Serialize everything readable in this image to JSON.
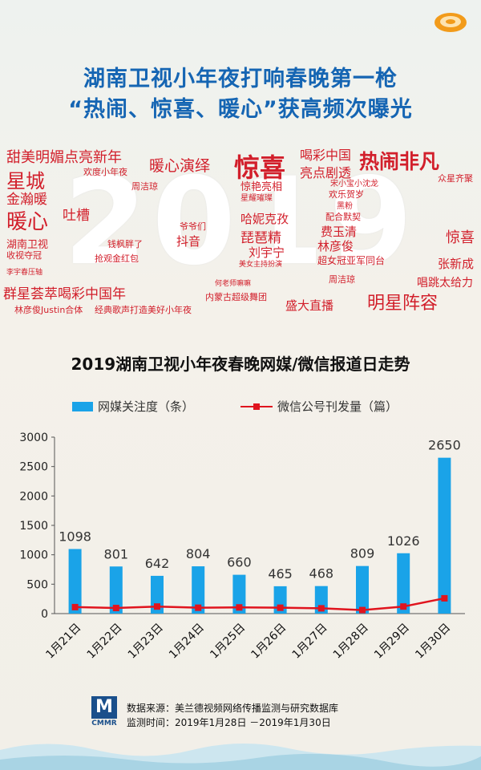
{
  "headline": {
    "line1": "湖南卫视小年夜打响春晚第一枪",
    "line2": "“热闹、惊喜、暖心”获高频次曝光"
  },
  "word_cloud": {
    "year": "2019",
    "words": [
      "甜美明媚点亮新年",
      "欢度小年夜",
      "暖心演绎",
      "惊喜",
      "喝彩中国",
      "亮点剧透",
      "热闹非凡",
      "众星齐聚",
      "星城",
      "周洁琼",
      "惊艳亮相",
      "星耀璀璨",
      "宋小宝小沈龙",
      "欢乐贺岁",
      "黑粉",
      "金瀚暖",
      "暖心",
      "吐槽",
      "爷爷们",
      "哈妮克孜",
      "配合默契",
      "抖音",
      "琵琶精",
      "费玉清",
      "惊喜",
      "湖南卫视",
      "钱枫胖了",
      "刘宇宁",
      "林彦俊",
      "收视夺冠",
      "抢观金红包",
      "美女主持扮演",
      "超女冠亚军同台",
      "张新成",
      "李宇春压轴",
      "何老师嘛嘛",
      "周洁琼",
      "唱跳太给力",
      "群星荟萃喝彩中国年",
      "内蒙古超级舞团",
      "林彦俊Justin合体",
      "经典歌声打造美好小年夜",
      "盛大直播",
      "明星阵容"
    ]
  },
  "chart_data": {
    "type": "bar",
    "title": "2019湖南卫视小年夜春晚网媒/微信报道日走势",
    "categories": [
      "1月21日",
      "1月22日",
      "1月23日",
      "1月24日",
      "1月25日",
      "1月26日",
      "1月27日",
      "1月28日",
      "1月29日",
      "1月30日"
    ],
    "series": [
      {
        "name": "网媒关注度（条）",
        "type": "bar",
        "color": "#1aa3e8",
        "values": [
          1098,
          801,
          642,
          804,
          660,
          465,
          468,
          809,
          1026,
          2650
        ]
      },
      {
        "name": "微信公号刊发量（篇）",
        "type": "line",
        "color": "#e0141e",
        "values": [
          110,
          95,
          120,
          100,
          105,
          100,
          90,
          60,
          120,
          260
        ]
      }
    ],
    "yticks": [
      "0",
      "500",
      "1000",
      "1500",
      "2000",
      "2500",
      "3000"
    ],
    "ylim": [
      0,
      3000
    ],
    "legend": "top-center",
    "grid": false
  },
  "source": {
    "logo_m": "M",
    "logo_text": "CMMR",
    "line1": "数据来源：美兰德视频网络传播监测与研究数据库",
    "line2": "监测时间：2019年1月28日 －2019年1月30日"
  },
  "colors": {
    "headline": "#1565b3",
    "cloud": "#d21f2b",
    "bar": "#1aa3e8",
    "line": "#e0141e"
  }
}
